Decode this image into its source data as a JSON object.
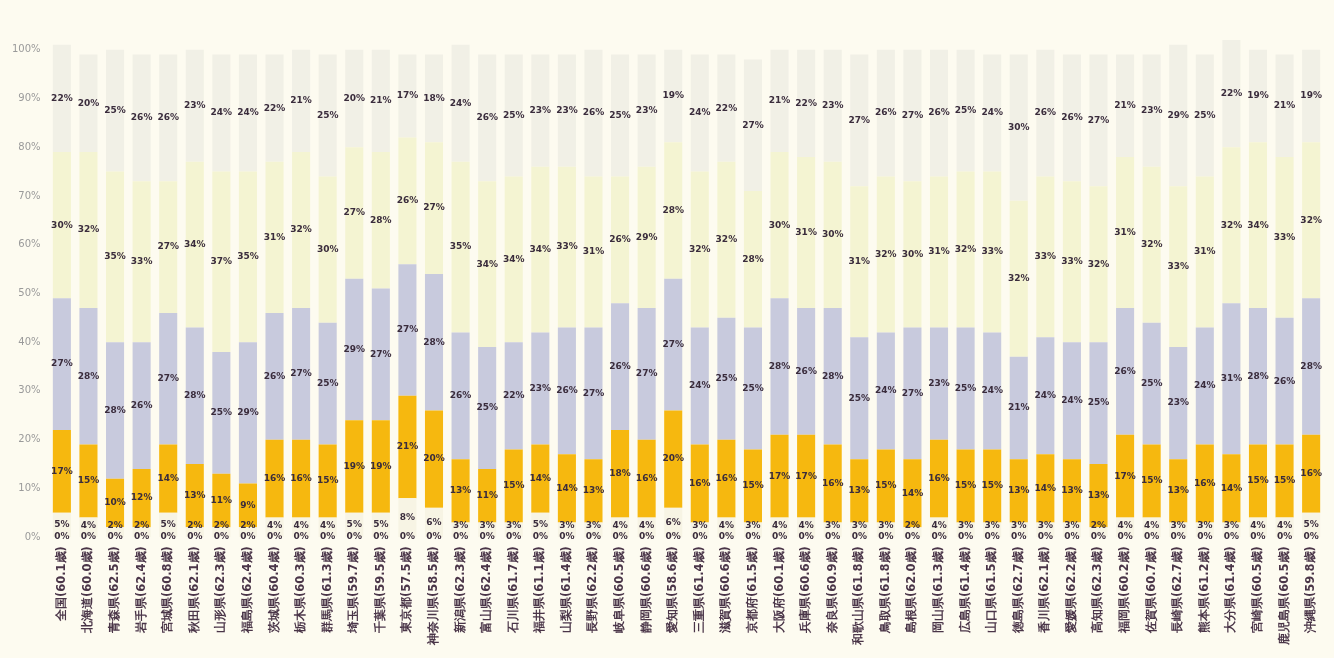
{
  "chart_data": {
    "type": "bar",
    "stacked": true,
    "legend": false,
    "grid": false,
    "categories": [
      "全国(60.1歳)",
      "北海道(60.0歳)",
      "青森県(62.5歳)",
      "岩手県(62.4歳)",
      "宮城県(60.8歳)",
      "秋田県(62.1歳)",
      "山形県(62.3歳)",
      "福島県(62.4歳)",
      "茨城県(60.4歳)",
      "栃木県(60.3歳)",
      "群馬県(61.3歳)",
      "埼玉県(59.7歳)",
      "千葉県(59.5歳)",
      "東京都(57.5歳)",
      "神奈川県(58.5歳)",
      "新潟県(62.3歳)",
      "富山県(62.4歳)",
      "石川県(61.7歳)",
      "福井県(61.1歳)",
      "山梨県(61.4歳)",
      "長野県(62.2歳)",
      "岐阜県(60.5歳)",
      "静岡県(60.6歳)",
      "愛知県(58.6歳)",
      "三重県(61.4歳)",
      "滋賀県(60.6歳)",
      "京都府(61.5歳)",
      "大阪府(60.1歳)",
      "兵庫県(60.6歳)",
      "奈良県(60.9歳)",
      "和歌山県(61.8歳)",
      "鳥取県(61.8歳)",
      "島根県(62.0歳)",
      "岡山県(61.3歳)",
      "広島県(61.4歳)",
      "山口県(61.5歳)",
      "徳島県(62.7歳)",
      "香川県(62.1歳)",
      "愛媛県(62.2歳)",
      "高知県(62.3歳)",
      "福岡県(60.2歳)",
      "佐賀県(60.7歳)",
      "長崎県(62.7歳)",
      "熊本県(61.2歳)",
      "大分県(61.4歳)",
      "宮崎県(60.5歳)",
      "鹿児島県(60.5歳)",
      "沖縄県(59.8歳)"
    ],
    "annotations": [
      {
        "text": "0%",
        "x": "全国(60.1歳)",
        "y": 0
      },
      {
        "text": "0%",
        "x": "北海道(60.0歳)",
        "y": 0
      },
      {
        "text": "0%",
        "x": "青森県(62.5歳)",
        "y": 0
      },
      {
        "text": "0%",
        "x": "岩手県(62.4歳)",
        "y": 0
      },
      {
        "text": "0%",
        "x": "宮城県(60.8歳)",
        "y": 0
      },
      {
        "text": "0%",
        "x": "秋田県(62.1歳)",
        "y": 0
      },
      {
        "text": "0%",
        "x": "山形県(62.3歳)",
        "y": 0
      },
      {
        "text": "0%",
        "x": "福島県(62.4歳)",
        "y": 0
      },
      {
        "text": "0%",
        "x": "茨城県(60.4歳)",
        "y": 0
      },
      {
        "text": "0%",
        "x": "栃木県(60.3歳)",
        "y": 0
      },
      {
        "text": "0%",
        "x": "群馬県(61.3歳)",
        "y": 0
      },
      {
        "text": "0%",
        "x": "埼玉県(59.7歳)",
        "y": 0
      },
      {
        "text": "0%",
        "x": "千葉県(59.5歳)",
        "y": 0
      },
      {
        "text": "0%",
        "x": "東京都(57.5歳)",
        "y": 0
      },
      {
        "text": "0%",
        "x": "神奈川県(58.5歳)",
        "y": 0
      },
      {
        "text": "0%",
        "x": "新潟県(62.3歳)",
        "y": 0
      },
      {
        "text": "0%",
        "x": "富山県(62.4歳)",
        "y": 0
      },
      {
        "text": "0%",
        "x": "石川県(61.7歳)",
        "y": 0
      },
      {
        "text": "0%",
        "x": "福井県(61.1歳)",
        "y": 0
      },
      {
        "text": "0%",
        "x": "山梨県(61.4歳)",
        "y": 0
      },
      {
        "text": "0%",
        "x": "長野県(62.2歳)",
        "y": 0
      },
      {
        "text": "0%",
        "x": "岐阜県(60.5歳)",
        "y": 0
      },
      {
        "text": "0%",
        "x": "静岡県(60.6歳)",
        "y": 0
      },
      {
        "text": "0%",
        "x": "愛知県(58.6歳)",
        "y": 0
      },
      {
        "text": "0%",
        "x": "三重県(61.4歳)",
        "y": 0
      },
      {
        "text": "0%",
        "x": "滋賀県(60.6歳)",
        "y": 0
      },
      {
        "text": "0%",
        "x": "京都府(61.5歳)",
        "y": 0
      },
      {
        "text": "0%",
        "x": "大阪府(60.1歳)",
        "y": 0
      },
      {
        "text": "0%",
        "x": "兵庫県(60.6歳)",
        "y": 0
      },
      {
        "text": "0%",
        "x": "奈良県(60.9歳)",
        "y": 0
      },
      {
        "text": "0%",
        "x": "和歌山県(61.8歳)",
        "y": 0
      },
      {
        "text": "0%",
        "x": "鳥取県(61.8歳)",
        "y": 0
      },
      {
        "text": "0%",
        "x": "島根県(62.0歳)",
        "y": 0
      },
      {
        "text": "0%",
        "x": "岡山県(61.3歳)",
        "y": 0
      },
      {
        "text": "0%",
        "x": "広島県(61.4歳)",
        "y": 0
      },
      {
        "text": "0%",
        "x": "山口県(61.5歳)",
        "y": 0
      },
      {
        "text": "0%",
        "x": "徳島県(62.7歳)",
        "y": 0
      },
      {
        "text": "0%",
        "x": "香川県(62.1歳)",
        "y": 0
      },
      {
        "text": "0%",
        "x": "愛媛県(62.2歳)",
        "y": 0
      },
      {
        "text": "0%",
        "x": "高知県(62.3歳)",
        "y": 0
      },
      {
        "text": "0%",
        "x": "福岡県(60.2歳)",
        "y": 0
      },
      {
        "text": "0%",
        "x": "佐賀県(60.7歳)",
        "y": 0
      },
      {
        "text": "0%",
        "x": "長崎県(62.7歳)",
        "y": 0
      },
      {
        "text": "0%",
        "x": "熊本県(61.2歳)",
        "y": 0
      },
      {
        "text": "0%",
        "x": "大分県(61.4歳)",
        "y": 0
      },
      {
        "text": "0%",
        "x": "宮崎県(60.5歳)",
        "y": 0
      },
      {
        "text": "0%",
        "x": "鹿児島県(60.5歳)",
        "y": 0
      },
      {
        "text": "0%",
        "x": "沖縄県(59.8歳)",
        "y": 0
      }
    ],
    "ylim": [
      0,
      102
    ],
    "yticks": [
      {
        "value": 0,
        "label": "0%"
      },
      {
        "value": 10,
        "label": "10%"
      },
      {
        "value": 20,
        "label": "20%"
      },
      {
        "value": 30,
        "label": "30%"
      },
      {
        "value": 40,
        "label": "40%"
      },
      {
        "value": 50,
        "label": "50%"
      },
      {
        "value": 60,
        "label": "60%"
      },
      {
        "value": 70,
        "label": "70%"
      },
      {
        "value": 80,
        "label": "80%"
      },
      {
        "value": 90,
        "label": "90%"
      },
      {
        "value": 100,
        "label": "100%"
      }
    ],
    "series": [
      {
        "color": "#f7f4e4",
        "values": [
          5,
          4,
          2,
          2,
          5,
          2,
          2,
          2,
          4,
          4,
          4,
          5,
          5,
          8,
          6,
          3,
          3,
          3,
          5,
          3,
          3,
          4,
          4,
          6,
          3,
          4,
          3,
          4,
          4,
          3,
          3,
          3,
          2,
          4,
          3,
          3,
          3,
          3,
          3,
          2,
          4,
          4,
          3,
          3,
          3,
          4,
          4,
          5
        ],
        "value_labels": [
          "5%",
          "4%",
          "2%",
          "2%",
          "5%",
          "2%",
          "2%",
          "2%",
          "4%",
          "4%",
          "4%",
          "5%",
          "5%",
          "8%",
          "6%",
          "3%",
          "3%",
          "3%",
          "5%",
          "3%",
          "3%",
          "4%",
          "4%",
          "6%",
          "3%",
          "4%",
          "3%",
          "4%",
          "4%",
          "3%",
          "3%",
          "3%",
          "2%",
          "4%",
          "3%",
          "3%",
          "3%",
          "3%",
          "3%",
          "2%",
          "4%",
          "4%",
          "3%",
          "3%",
          "3%",
          "4%",
          "4%",
          "5%"
        ]
      },
      {
        "color": "#f6b80f",
        "values": [
          17,
          15,
          10,
          12,
          14,
          13,
          11,
          9,
          16,
          16,
          15,
          19,
          19,
          21,
          20,
          13,
          11,
          15,
          14,
          14,
          13,
          18,
          16,
          20,
          16,
          16,
          15,
          17,
          17,
          16,
          13,
          15,
          14,
          16,
          15,
          15,
          13,
          14,
          13,
          13,
          17,
          15,
          13,
          16,
          14,
          15,
          15,
          16
        ],
        "value_labels": [
          "17%",
          "15%",
          "10%",
          "12%",
          "14%",
          "13%",
          "11%",
          "9%",
          "16%",
          "16%",
          "15%",
          "19%",
          "19%",
          "21%",
          "20%",
          "13%",
          "11%",
          "15%",
          "14%",
          "14%",
          "13%",
          "18%",
          "16%",
          "20%",
          "16%",
          "16%",
          "15%",
          "17%",
          "17%",
          "16%",
          "13%",
          "15%",
          "14%",
          "16%",
          "15%",
          "15%",
          "13%",
          "14%",
          "13%",
          "13%",
          "17%",
          "15%",
          "13%",
          "16%",
          "14%",
          "15%",
          "15%",
          "16%"
        ]
      },
      {
        "color": "#c8cadd",
        "values": [
          27,
          28,
          28,
          26,
          27,
          28,
          25,
          29,
          26,
          27,
          25,
          29,
          27,
          27,
          28,
          26,
          25,
          22,
          23,
          26,
          27,
          26,
          27,
          27,
          24,
          25,
          25,
          28,
          26,
          28,
          25,
          24,
          27,
          23,
          25,
          24,
          21,
          24,
          24,
          25,
          26,
          25,
          23,
          24,
          31,
          28,
          26,
          28
        ],
        "value_labels": [
          "27%",
          "28%",
          "28%",
          "26%",
          "27%",
          "28%",
          "25%",
          "29%",
          "26%",
          "27%",
          "25%",
          "29%",
          "27%",
          "27%",
          "28%",
          "26%",
          "25%",
          "22%",
          "23%",
          "26%",
          "27%",
          "26%",
          "27%",
          "27%",
          "24%",
          "25%",
          "25%",
          "28%",
          "26%",
          "28%",
          "25%",
          "24%",
          "27%",
          "23%",
          "25%",
          "24%",
          "21%",
          "24%",
          "24%",
          "25%",
          "26%",
          "25%",
          "23%",
          "24%",
          "31%",
          "28%",
          "26%",
          "28%"
        ]
      },
      {
        "color": "#f4f4d2",
        "values": [
          30,
          32,
          35,
          33,
          27,
          34,
          37,
          35,
          31,
          32,
          30,
          27,
          28,
          26,
          27,
          35,
          34,
          34,
          34,
          33,
          31,
          26,
          29,
          28,
          32,
          32,
          28,
          30,
          31,
          30,
          31,
          32,
          30,
          31,
          32,
          33,
          32,
          33,
          33,
          32,
          31,
          32,
          33,
          31,
          32,
          34,
          33,
          32
        ],
        "value_labels": [
          "30%",
          "32%",
          "35%",
          "33%",
          "27%",
          "34%",
          "37%",
          "35%",
          "31%",
          "32%",
          "30%",
          "27%",
          "28%",
          "26%",
          "27%",
          "35%",
          "34%",
          "34%",
          "34%",
          "33%",
          "31%",
          "26%",
          "29%",
          "28%",
          "32%",
          "32%",
          "28%",
          "30%",
          "31%",
          "30%",
          "31%",
          "32%",
          "30%",
          "31%",
          "32%",
          "33%",
          "32%",
          "33%",
          "33%",
          "32%",
          "31%",
          "32%",
          "33%",
          "31%",
          "32%",
          "34%",
          "33%",
          "32%"
        ]
      },
      {
        "color": "#f1f0e6",
        "values": [
          22,
          20,
          25,
          26,
          26,
          23,
          24,
          24,
          22,
          21,
          25,
          20,
          21,
          17,
          18,
          24,
          26,
          25,
          23,
          23,
          26,
          25,
          23,
          19,
          24,
          22,
          27,
          21,
          22,
          23,
          27,
          26,
          27,
          26,
          25,
          24,
          30,
          26,
          26,
          27,
          21,
          23,
          29,
          25,
          22,
          19,
          21,
          19
        ],
        "value_labels": [
          "22%",
          "20%",
          "25%",
          "26%",
          "26%",
          "23%",
          "24%",
          "24%",
          "22%",
          "21%",
          "25%",
          "20%",
          "21%",
          "17%",
          "18%",
          "24%",
          "26%",
          "25%",
          "23%",
          "23%",
          "26%",
          "25%",
          "23%",
          "19%",
          "24%",
          "22%",
          "27%",
          "21%",
          "22%",
          "23%",
          "27%",
          "26%",
          "27%",
          "26%",
          "25%",
          "24%",
          "30%",
          "26%",
          "26%",
          "27%",
          "21%",
          "23%",
          "29%",
          "25%",
          "22%",
          "19%",
          "21%",
          "19%"
        ]
      }
    ]
  }
}
